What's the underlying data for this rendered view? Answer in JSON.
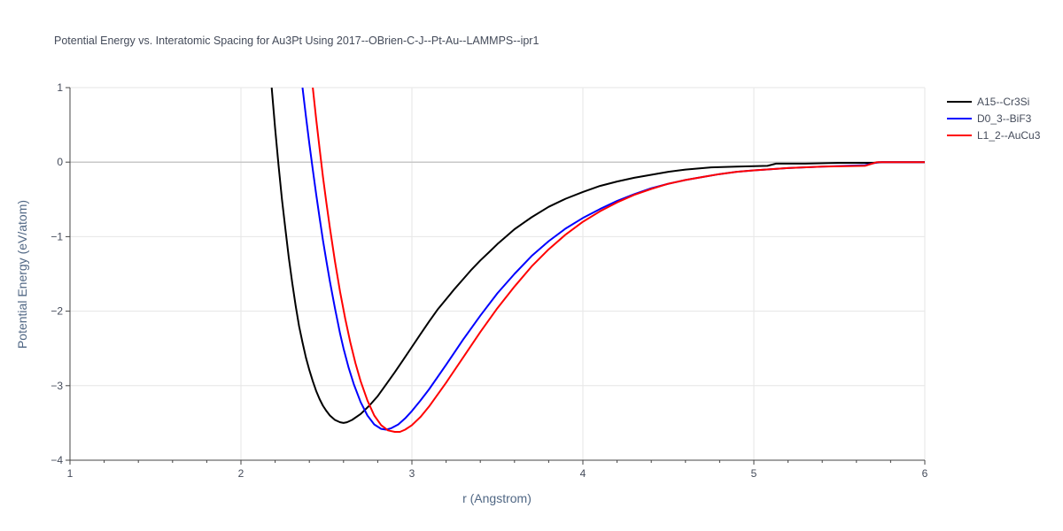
{
  "chart_data": {
    "type": "line",
    "title": "Potential Energy vs. Interatomic Spacing for Au3Pt Using 2017--OBrien-C-J--Pt-Au--LAMMPS--ipr1",
    "xlabel": "r (Angstrom)",
    "ylabel": "Potential Energy (eV/atom)",
    "xlim": [
      1,
      6
    ],
    "ylim": [
      -4,
      1
    ],
    "xticks": [
      1,
      2,
      3,
      4,
      5,
      6
    ],
    "xtick_labels": [
      "1",
      "2",
      "3",
      "4",
      "5",
      "6"
    ],
    "yticks": [
      1,
      0,
      -1,
      -2,
      -3,
      -4
    ],
    "ytick_labels": [
      "1",
      "0",
      "−1",
      "−2",
      "−3",
      "−4"
    ],
    "grid": true,
    "legend_position": "top-right",
    "series": [
      {
        "name": "A15--Cr3Si",
        "color": "#000000",
        "x": [
          2.18,
          2.2,
          2.22,
          2.24,
          2.26,
          2.28,
          2.3,
          2.32,
          2.34,
          2.36,
          2.38,
          2.4,
          2.42,
          2.44,
          2.46,
          2.48,
          2.5,
          2.52,
          2.55,
          2.58,
          2.6,
          2.62,
          2.65,
          2.7,
          2.75,
          2.8,
          2.85,
          2.9,
          2.95,
          3.0,
          3.05,
          3.1,
          3.15,
          3.2,
          3.25,
          3.3,
          3.35,
          3.4,
          3.45,
          3.5,
          3.55,
          3.6,
          3.65,
          3.7,
          3.8,
          3.9,
          4.0,
          4.1,
          4.2,
          4.3,
          4.4,
          4.5,
          4.6,
          4.75,
          4.9,
          5.08,
          5.13,
          5.3,
          5.5,
          5.7,
          5.75,
          6.0
        ],
        "y": [
          1.0,
          0.45,
          -0.05,
          -0.5,
          -0.9,
          -1.28,
          -1.62,
          -1.93,
          -2.2,
          -2.42,
          -2.62,
          -2.79,
          -2.94,
          -3.07,
          -3.18,
          -3.27,
          -3.34,
          -3.4,
          -3.46,
          -3.49,
          -3.5,
          -3.49,
          -3.46,
          -3.38,
          -3.27,
          -3.14,
          -2.98,
          -2.82,
          -2.65,
          -2.48,
          -2.31,
          -2.14,
          -1.98,
          -1.84,
          -1.7,
          -1.57,
          -1.44,
          -1.32,
          -1.21,
          -1.1,
          -1.0,
          -0.9,
          -0.82,
          -0.74,
          -0.6,
          -0.49,
          -0.4,
          -0.32,
          -0.26,
          -0.21,
          -0.17,
          -0.13,
          -0.1,
          -0.07,
          -0.06,
          -0.05,
          -0.02,
          -0.02,
          -0.01,
          -0.01,
          0.0,
          0.0
        ]
      },
      {
        "name": "D0_3--BiF3",
        "color": "#0000ff",
        "x": [
          2.36,
          2.38,
          2.4,
          2.42,
          2.44,
          2.46,
          2.48,
          2.5,
          2.52,
          2.55,
          2.58,
          2.6,
          2.63,
          2.66,
          2.7,
          2.74,
          2.78,
          2.82,
          2.85,
          2.88,
          2.92,
          2.96,
          3.0,
          3.05,
          3.1,
          3.2,
          3.3,
          3.4,
          3.5,
          3.6,
          3.7,
          3.8,
          3.9,
          4.0,
          4.1,
          4.2,
          4.3,
          4.4,
          4.5,
          4.6,
          4.7,
          4.8,
          4.9,
          5.0,
          5.2,
          5.4,
          5.65,
          5.73,
          6.0
        ],
        "y": [
          1.0,
          0.62,
          0.25,
          -0.1,
          -0.43,
          -0.75,
          -1.05,
          -1.33,
          -1.6,
          -1.96,
          -2.3,
          -2.5,
          -2.76,
          -2.98,
          -3.22,
          -3.4,
          -3.52,
          -3.58,
          -3.59,
          -3.57,
          -3.52,
          -3.44,
          -3.34,
          -3.2,
          -3.05,
          -2.72,
          -2.38,
          -2.06,
          -1.76,
          -1.5,
          -1.26,
          -1.06,
          -0.89,
          -0.75,
          -0.63,
          -0.52,
          -0.43,
          -0.35,
          -0.29,
          -0.24,
          -0.2,
          -0.16,
          -0.13,
          -0.11,
          -0.08,
          -0.06,
          -0.04,
          0.0,
          0.0
        ]
      },
      {
        "name": "L1_2--AuCu3",
        "color": "#ff0000",
        "x": [
          2.42,
          2.44,
          2.46,
          2.48,
          2.5,
          2.52,
          2.55,
          2.58,
          2.61,
          2.64,
          2.67,
          2.7,
          2.74,
          2.78,
          2.82,
          2.86,
          2.9,
          2.93,
          2.96,
          3.0,
          3.05,
          3.1,
          3.2,
          3.3,
          3.4,
          3.5,
          3.6,
          3.7,
          3.8,
          3.9,
          4.0,
          4.1,
          4.2,
          4.3,
          4.4,
          4.5,
          4.6,
          4.7,
          4.8,
          4.9,
          5.0,
          5.2,
          5.4,
          5.65,
          5.72,
          6.0
        ],
        "y": [
          1.0,
          0.58,
          0.18,
          -0.2,
          -0.55,
          -0.88,
          -1.33,
          -1.74,
          -2.1,
          -2.42,
          -2.7,
          -2.94,
          -3.2,
          -3.4,
          -3.53,
          -3.6,
          -3.62,
          -3.62,
          -3.59,
          -3.53,
          -3.42,
          -3.28,
          -2.96,
          -2.62,
          -2.28,
          -1.96,
          -1.67,
          -1.4,
          -1.17,
          -0.97,
          -0.8,
          -0.66,
          -0.54,
          -0.44,
          -0.36,
          -0.29,
          -0.24,
          -0.2,
          -0.16,
          -0.13,
          -0.11,
          -0.08,
          -0.06,
          -0.05,
          0.0,
          0.0
        ]
      }
    ]
  }
}
